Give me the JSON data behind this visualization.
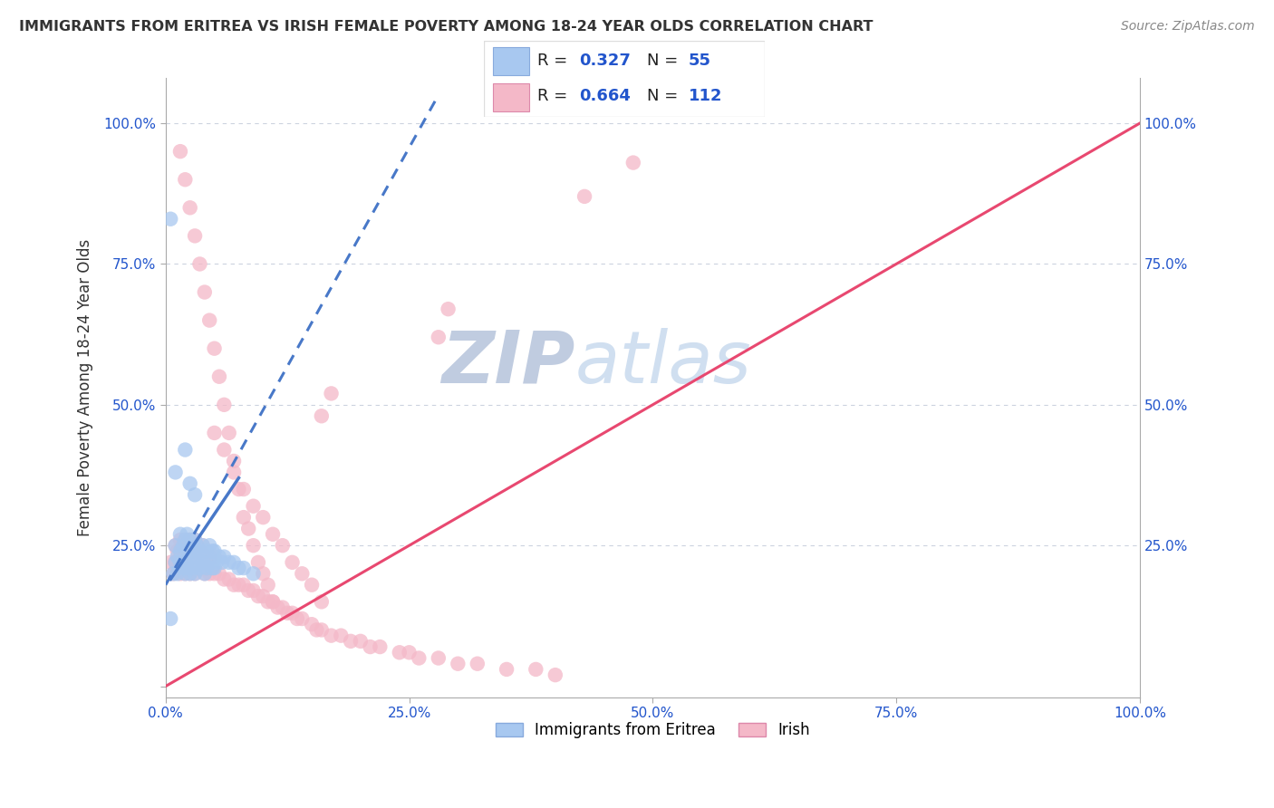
{
  "title": "IMMIGRANTS FROM ERITREA VS IRISH FEMALE POVERTY AMONG 18-24 YEAR OLDS CORRELATION CHART",
  "source": "Source: ZipAtlas.com",
  "ylabel": "Female Poverty Among 18-24 Year Olds",
  "xlim": [
    0,
    1
  ],
  "ylim": [
    -0.02,
    1.08
  ],
  "xticks": [
    0,
    0.25,
    0.5,
    0.75,
    1.0
  ],
  "yticks": [
    0,
    0.25,
    0.5,
    0.75,
    1.0
  ],
  "xticklabels": [
    "0.0%",
    "25.0%",
    "50.0%",
    "75.0%",
    "100.0%"
  ],
  "yticklabels": [
    "",
    "25.0%",
    "50.0%",
    "75.0%",
    "100.0%"
  ],
  "blue_R": 0.327,
  "blue_N": 55,
  "pink_R": 0.664,
  "pink_N": 112,
  "blue_color": "#a8c8f0",
  "pink_color": "#f4b8c8",
  "blue_line_color": "#4878c8",
  "pink_line_color": "#e84870",
  "watermark_zip": "ZIP",
  "watermark_atlas": "atlas",
  "watermark_color_zip": "#c8d8ec",
  "watermark_color_atlas": "#d0e4f4",
  "legend_blue_label": "Immigrants from Eritrea",
  "legend_pink_label": "Irish",
  "blue_scatter_x": [
    0.005,
    0.008,
    0.01,
    0.01,
    0.012,
    0.012,
    0.015,
    0.015,
    0.015,
    0.018,
    0.018,
    0.02,
    0.02,
    0.02,
    0.022,
    0.022,
    0.022,
    0.025,
    0.025,
    0.025,
    0.028,
    0.028,
    0.03,
    0.03,
    0.03,
    0.032,
    0.032,
    0.035,
    0.035,
    0.038,
    0.038,
    0.04,
    0.04,
    0.042,
    0.042,
    0.045,
    0.045,
    0.048,
    0.048,
    0.05,
    0.05,
    0.052,
    0.055,
    0.058,
    0.06,
    0.065,
    0.07,
    0.075,
    0.08,
    0.09,
    0.01,
    0.02,
    0.025,
    0.03,
    0.005
  ],
  "blue_scatter_y": [
    0.83,
    0.2,
    0.22,
    0.25,
    0.2,
    0.23,
    0.22,
    0.24,
    0.27,
    0.21,
    0.25,
    0.2,
    0.22,
    0.26,
    0.21,
    0.24,
    0.27,
    0.2,
    0.23,
    0.26,
    0.21,
    0.24,
    0.2,
    0.23,
    0.26,
    0.22,
    0.25,
    0.21,
    0.24,
    0.22,
    0.25,
    0.2,
    0.23,
    0.21,
    0.24,
    0.22,
    0.25,
    0.21,
    0.24,
    0.21,
    0.24,
    0.22,
    0.23,
    0.22,
    0.23,
    0.22,
    0.22,
    0.21,
    0.21,
    0.2,
    0.38,
    0.42,
    0.36,
    0.34,
    0.12
  ],
  "pink_scatter_x": [
    0.005,
    0.008,
    0.01,
    0.01,
    0.012,
    0.012,
    0.015,
    0.015,
    0.015,
    0.018,
    0.018,
    0.02,
    0.02,
    0.02,
    0.022,
    0.022,
    0.025,
    0.025,
    0.025,
    0.028,
    0.028,
    0.03,
    0.03,
    0.03,
    0.032,
    0.032,
    0.035,
    0.035,
    0.038,
    0.038,
    0.04,
    0.04,
    0.042,
    0.045,
    0.045,
    0.048,
    0.05,
    0.05,
    0.055,
    0.06,
    0.065,
    0.07,
    0.075,
    0.08,
    0.085,
    0.09,
    0.095,
    0.1,
    0.105,
    0.11,
    0.115,
    0.12,
    0.125,
    0.13,
    0.135,
    0.14,
    0.15,
    0.155,
    0.16,
    0.17,
    0.18,
    0.19,
    0.2,
    0.21,
    0.22,
    0.24,
    0.25,
    0.26,
    0.28,
    0.3,
    0.32,
    0.35,
    0.38,
    0.4,
    0.28,
    0.29,
    0.16,
    0.17,
    0.43,
    0.48,
    0.015,
    0.02,
    0.025,
    0.03,
    0.035,
    0.04,
    0.045,
    0.05,
    0.055,
    0.06,
    0.065,
    0.07,
    0.075,
    0.08,
    0.085,
    0.09,
    0.095,
    0.1,
    0.105,
    0.11,
    0.05,
    0.06,
    0.07,
    0.08,
    0.09,
    0.1,
    0.11,
    0.12,
    0.13,
    0.14,
    0.15,
    0.16
  ],
  "pink_scatter_y": [
    0.22,
    0.2,
    0.22,
    0.25,
    0.21,
    0.24,
    0.2,
    0.23,
    0.26,
    0.22,
    0.25,
    0.2,
    0.23,
    0.26,
    0.22,
    0.25,
    0.2,
    0.23,
    0.26,
    0.22,
    0.25,
    0.2,
    0.23,
    0.26,
    0.22,
    0.25,
    0.21,
    0.24,
    0.22,
    0.25,
    0.2,
    0.23,
    0.22,
    0.2,
    0.23,
    0.21,
    0.2,
    0.23,
    0.2,
    0.19,
    0.19,
    0.18,
    0.18,
    0.18,
    0.17,
    0.17,
    0.16,
    0.16,
    0.15,
    0.15,
    0.14,
    0.14,
    0.13,
    0.13,
    0.12,
    0.12,
    0.11,
    0.1,
    0.1,
    0.09,
    0.09,
    0.08,
    0.08,
    0.07,
    0.07,
    0.06,
    0.06,
    0.05,
    0.05,
    0.04,
    0.04,
    0.03,
    0.03,
    0.02,
    0.62,
    0.67,
    0.48,
    0.52,
    0.87,
    0.93,
    0.95,
    0.9,
    0.85,
    0.8,
    0.75,
    0.7,
    0.65,
    0.6,
    0.55,
    0.5,
    0.45,
    0.4,
    0.35,
    0.3,
    0.28,
    0.25,
    0.22,
    0.2,
    0.18,
    0.15,
    0.45,
    0.42,
    0.38,
    0.35,
    0.32,
    0.3,
    0.27,
    0.25,
    0.22,
    0.2,
    0.18,
    0.15
  ],
  "pink_line_x0": 0.0,
  "pink_line_y0": 0.0,
  "pink_line_x1": 1.0,
  "pink_line_y1": 1.0,
  "blue_line_x0": 0.0,
  "blue_line_y0": 0.18,
  "blue_line_x1": 0.28,
  "blue_line_y1": 1.05
}
